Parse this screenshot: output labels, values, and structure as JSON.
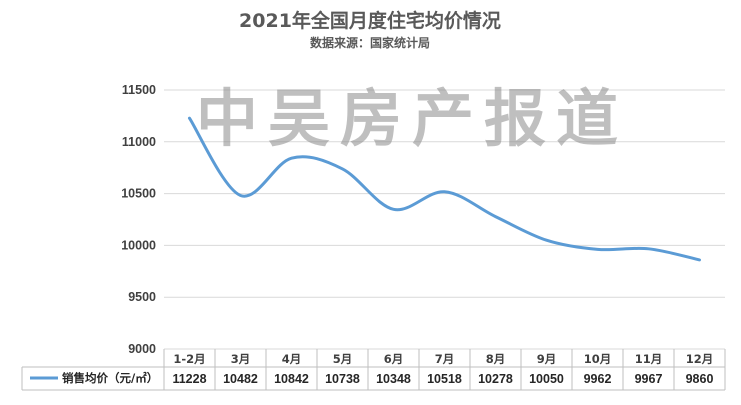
{
  "watermark": "中吴房产报道",
  "chart_data": {
    "type": "line",
    "title": "2021年全国月度住宅均价情况",
    "subtitle": "数据来源：国家统计局",
    "categories": [
      "1-2月",
      "3月",
      "4月",
      "5月",
      "6月",
      "7月",
      "8月",
      "9月",
      "10月",
      "11月",
      "12月"
    ],
    "series": [
      {
        "name": "销售均价（元/㎡）",
        "values": [
          11228,
          10482,
          10842,
          10738,
          10348,
          10518,
          10278,
          10050,
          9962,
          9967,
          9860
        ],
        "color": "#5b9bd5"
      }
    ],
    "ylim": [
      9000,
      11500
    ],
    "yticks": [
      9000,
      9500,
      10000,
      10500,
      11000,
      11500
    ],
    "grid": true,
    "smooth": true,
    "data_table": true
  }
}
